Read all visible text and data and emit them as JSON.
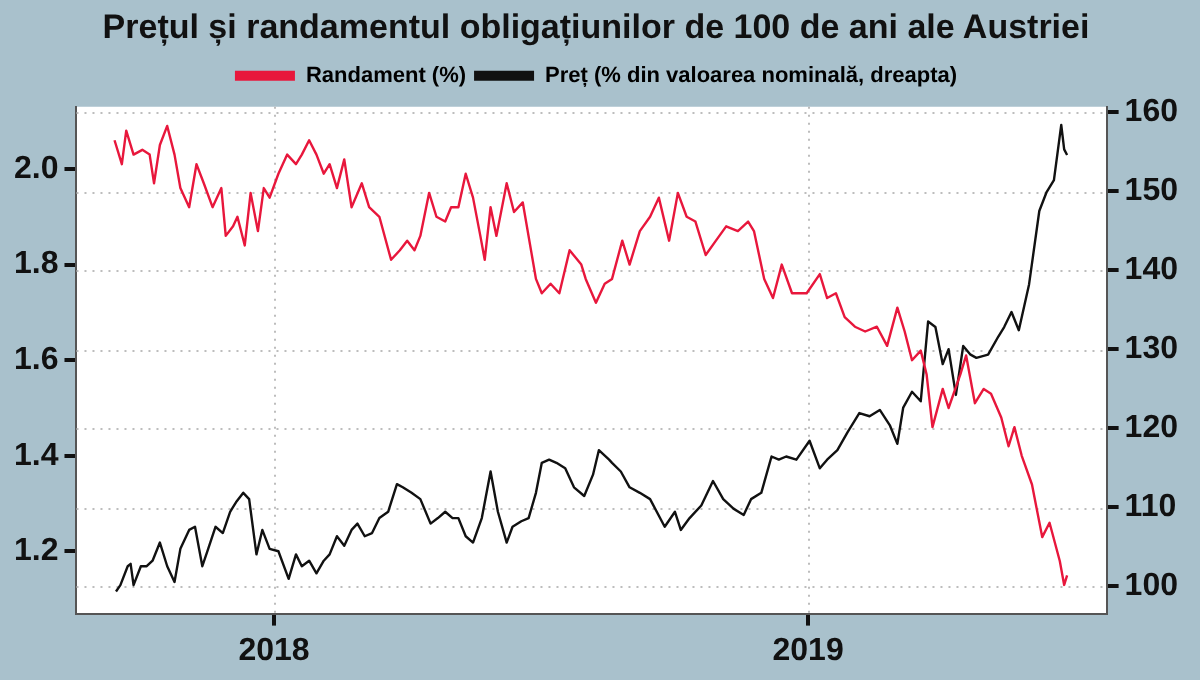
{
  "chart_data": {
    "type": "line",
    "title": "Prețul și randamentul obligațiunilor de 100 de ani ale Austriei",
    "xlim": [
      "2017-08-19",
      "2019-07-24"
    ],
    "xticks": [
      "2018",
      "2019"
    ],
    "ylim": [
      1.07,
      2.13
    ],
    "yticks": [
      1.2,
      1.4,
      1.6,
      1.8,
      {
        "value": 2,
        "label": "2.0"
      }
    ],
    "y2lim": [
      96.5,
      160.7
    ],
    "y2ticks": [
      100,
      110,
      120,
      130,
      140,
      150,
      160
    ],
    "grid": true,
    "legend": "top",
    "marker": "none",
    "line_style": "solid",
    "series": [
      {
        "name": "Randament (%)",
        "color": "#e8173c",
        "x": [
          "2017-09-14",
          "2017-09-19",
          "2017-09-22",
          "2017-09-27",
          "2017-10-03",
          "2017-10-08",
          "2017-10-11",
          "2017-10-15",
          "2017-10-20",
          "2017-10-25",
          "2017-10-29",
          "2017-11-04",
          "2017-11-09",
          "2017-11-14",
          "2017-11-20",
          "2017-11-26",
          "2017-11-29",
          "2017-12-04",
          "2017-12-07",
          "2017-12-12",
          "2017-12-16",
          "2017-12-21",
          "2017-12-25",
          "2017-12-29",
          "2018-01-04",
          "2018-01-10",
          "2018-01-16",
          "2018-01-20",
          "2018-01-25",
          "2018-01-30",
          "2018-02-04",
          "2018-02-08",
          "2018-02-13",
          "2018-02-18",
          "2018-02-23",
          "2018-03-02",
          "2018-03-07",
          "2018-03-14",
          "2018-03-22",
          "2018-03-28",
          "2018-04-02",
          "2018-04-07",
          "2018-04-11",
          "2018-04-17",
          "2018-04-22",
          "2018-04-28",
          "2018-05-02",
          "2018-05-07",
          "2018-05-12",
          "2018-05-17",
          "2018-05-22",
          "2018-05-25",
          "2018-05-29",
          "2018-06-02",
          "2018-06-09",
          "2018-06-14",
          "2018-06-20",
          "2018-06-29",
          "2018-07-03",
          "2018-07-09",
          "2018-07-15",
          "2018-07-22",
          "2018-07-30",
          "2018-08-02",
          "2018-08-09",
          "2018-08-15",
          "2018-08-20",
          "2018-08-27",
          "2018-09-01",
          "2018-09-08",
          "2018-09-15",
          "2018-09-21",
          "2018-09-28",
          "2018-10-04",
          "2018-10-10",
          "2018-10-16",
          "2018-10-23",
          "2018-10-30",
          "2018-11-06",
          "2018-11-14",
          "2018-11-21",
          "2018-11-25",
          "2018-12-02",
          "2018-12-08",
          "2018-12-14",
          "2018-12-21",
          "2018-12-31",
          "2019-01-09",
          "2019-01-14",
          "2019-01-20",
          "2019-01-26",
          "2019-02-02",
          "2019-02-09",
          "2019-02-17",
          "2019-02-24",
          "2019-03-03",
          "2019-03-08",
          "2019-03-13",
          "2019-03-19",
          "2019-03-23",
          "2019-03-27",
          "2019-04-03",
          "2019-04-07",
          "2019-04-15",
          "2019-04-19",
          "2019-04-25",
          "2019-05-01",
          "2019-05-06",
          "2019-05-13",
          "2019-05-18",
          "2019-05-22",
          "2019-05-27",
          "2019-06-03",
          "2019-06-10",
          "2019-06-15",
          "2019-06-22",
          "2019-06-25",
          "2019-06-27"
        ],
        "values": [
          2.06,
          2.01,
          2.08,
          2.03,
          2.04,
          2.03,
          1.97,
          2.05,
          2.09,
          2.03,
          1.96,
          1.92,
          2.01,
          1.97,
          1.92,
          1.96,
          1.86,
          1.88,
          1.9,
          1.84,
          1.95,
          1.87,
          1.96,
          1.94,
          1.99,
          2.03,
          2.01,
          2.03,
          2.06,
          2.03,
          1.99,
          2.01,
          1.96,
          2.02,
          1.92,
          1.97,
          1.92,
          1.9,
          1.81,
          1.83,
          1.85,
          1.83,
          1.86,
          1.95,
          1.9,
          1.89,
          1.92,
          1.92,
          1.99,
          1.94,
          1.86,
          1.81,
          1.92,
          1.86,
          1.97,
          1.91,
          1.93,
          1.77,
          1.74,
          1.76,
          1.74,
          1.83,
          1.8,
          1.77,
          1.72,
          1.76,
          1.77,
          1.85,
          1.8,
          1.87,
          1.9,
          1.94,
          1.85,
          1.95,
          1.9,
          1.89,
          1.82,
          1.85,
          1.88,
          1.87,
          1.89,
          1.87,
          1.77,
          1.73,
          1.8,
          1.74,
          1.74,
          1.78,
          1.73,
          1.74,
          1.69,
          1.67,
          1.66,
          1.67,
          1.63,
          1.71,
          1.66,
          1.6,
          1.62,
          1.57,
          1.46,
          1.54,
          1.5,
          1.57,
          1.61,
          1.51,
          1.54,
          1.53,
          1.48,
          1.42,
          1.46,
          1.4,
          1.34,
          1.23,
          1.26,
          1.18,
          1.13,
          1.15
        ]
      },
      {
        "name": "Preț (% din valoarea nominală, dreapta)",
        "color": "#111111",
        "axis": "y2",
        "x": [
          "2017-09-15",
          "2017-09-18",
          "2017-09-23",
          "2017-09-25",
          "2017-09-27",
          "2017-10-02",
          "2017-10-06",
          "2017-10-10",
          "2017-10-15",
          "2017-10-20",
          "2017-10-25",
          "2017-10-29",
          "2017-11-04",
          "2017-11-08",
          "2017-11-13",
          "2017-11-17",
          "2017-11-22",
          "2017-11-27",
          "2017-12-02",
          "2017-12-06",
          "2017-12-11",
          "2017-12-15",
          "2017-12-20",
          "2017-12-24",
          "2017-12-29",
          "2018-01-04",
          "2018-01-11",
          "2018-01-16",
          "2018-01-20",
          "2018-01-25",
          "2018-01-30",
          "2018-02-04",
          "2018-02-08",
          "2018-02-13",
          "2018-02-18",
          "2018-02-23",
          "2018-02-27",
          "2018-03-04",
          "2018-03-09",
          "2018-03-14",
          "2018-03-20",
          "2018-03-26",
          "2018-03-30",
          "2018-04-05",
          "2018-04-11",
          "2018-04-18",
          "2018-04-23",
          "2018-04-28",
          "2018-05-03",
          "2018-05-07",
          "2018-05-12",
          "2018-05-17",
          "2018-05-23",
          "2018-05-29",
          "2018-06-03",
          "2018-06-09",
          "2018-06-13",
          "2018-06-19",
          "2018-06-24",
          "2018-06-29",
          "2018-07-03",
          "2018-07-08",
          "2018-07-13",
          "2018-07-19",
          "2018-07-25",
          "2018-08-01",
          "2018-08-07",
          "2018-08-11",
          "2018-08-18",
          "2018-08-20",
          "2018-08-26",
          "2018-09-01",
          "2018-09-08",
          "2018-09-15",
          "2018-09-25",
          "2018-10-02",
          "2018-10-06",
          "2018-10-12",
          "2018-10-20",
          "2018-10-28",
          "2018-11-04",
          "2018-11-11",
          "2018-11-18",
          "2018-11-23",
          "2018-11-30",
          "2018-12-07",
          "2018-12-12",
          "2018-12-17",
          "2018-12-24",
          "2019-01-02",
          "2019-01-09",
          "2019-01-14",
          "2019-01-21",
          "2019-01-28",
          "2019-02-05",
          "2019-02-12",
          "2019-02-19",
          "2019-02-26",
          "2019-03-03",
          "2019-03-07",
          "2019-03-13",
          "2019-03-19",
          "2019-03-24",
          "2019-03-29",
          "2019-04-03",
          "2019-04-07",
          "2019-04-12",
          "2019-04-17",
          "2019-04-22",
          "2019-04-26",
          "2019-05-04",
          "2019-05-11",
          "2019-05-15",
          "2019-05-20",
          "2019-05-25",
          "2019-06-01",
          "2019-06-08",
          "2019-06-13",
          "2019-06-18",
          "2019-06-23",
          "2019-06-25",
          "2019-06-27"
        ],
        "values": [
          99.3,
          100.1,
          102.5,
          102.8,
          100.1,
          102.5,
          102.5,
          103.2,
          105.5,
          102.5,
          100.5,
          104.7,
          107.1,
          107.5,
          102.5,
          104.7,
          107.5,
          106.7,
          109.4,
          110.6,
          111.8,
          111,
          104,
          107.1,
          104.7,
          104.4,
          100.9,
          104,
          102.5,
          103.2,
          101.6,
          103.2,
          104,
          106.3,
          105.1,
          107.1,
          107.9,
          106.3,
          106.7,
          108.6,
          109.4,
          112.9,
          112.5,
          111.8,
          111,
          107.9,
          108.6,
          109.4,
          108.6,
          108.6,
          106.3,
          105.5,
          108.6,
          114.5,
          109.4,
          105.5,
          107.5,
          108.2,
          108.6,
          111.8,
          115.6,
          116,
          115.6,
          114.9,
          112.5,
          111.4,
          114.1,
          117.2,
          116,
          115.6,
          114.5,
          112.5,
          111.8,
          111,
          107.5,
          109.4,
          107.1,
          108.6,
          110.2,
          113.3,
          111,
          109.8,
          109,
          111,
          111.8,
          116.4,
          116,
          116.4,
          116,
          118.4,
          114.9,
          116,
          117.2,
          119.5,
          121.9,
          121.5,
          122.3,
          120.3,
          118,
          122.6,
          124.6,
          123.4,
          133.5,
          132.8,
          128.1,
          130,
          124.2,
          130.4,
          129.3,
          128.9,
          129.3,
          131.6,
          132.8,
          134.7,
          132.4,
          138.2,
          147.5,
          149.9,
          151.4,
          158.4,
          155.3,
          154.6
        ]
      }
    ]
  }
}
